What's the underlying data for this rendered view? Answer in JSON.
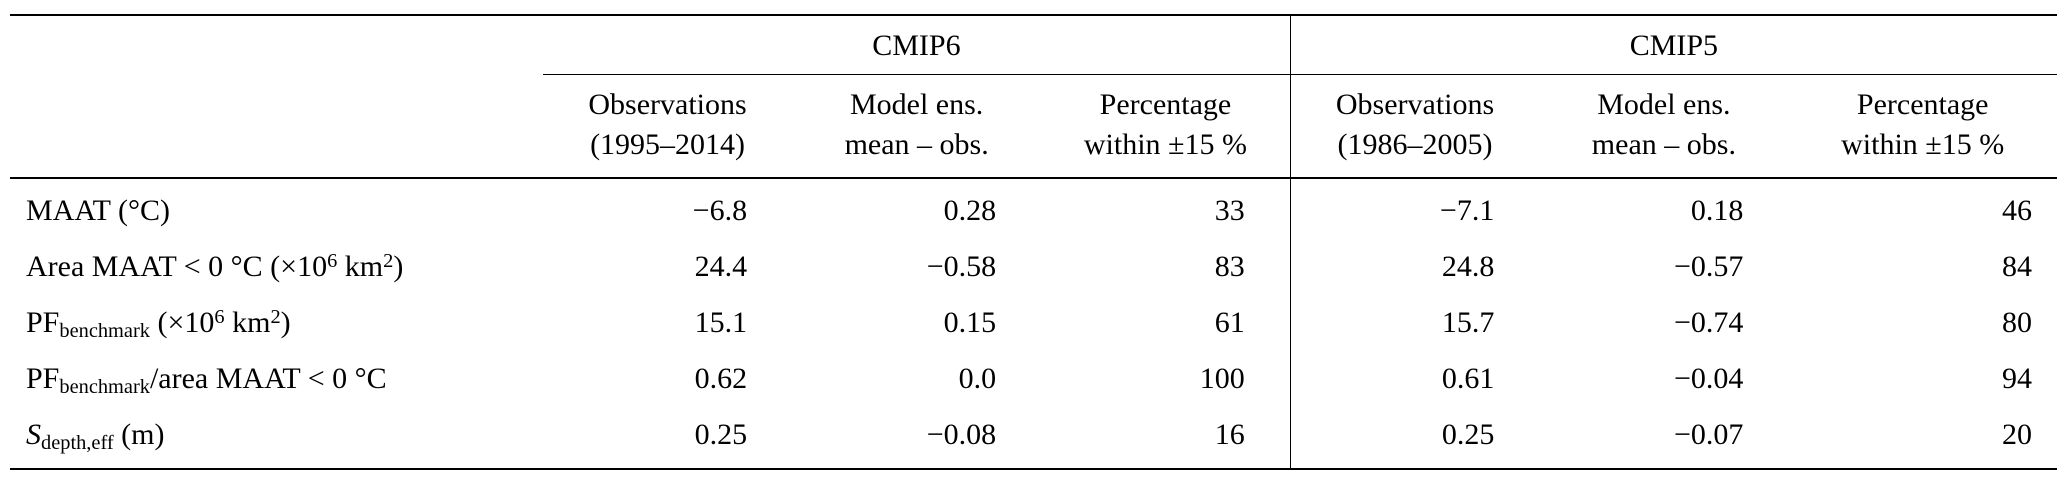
{
  "meta": {
    "background_color": "#ffffff",
    "text_color": "#000000"
  },
  "table": {
    "group_headers": [
      {
        "label": "CMIP6"
      },
      {
        "label": "CMIP5"
      }
    ],
    "column_headers": [
      {
        "line1": "Observations",
        "line2": "(1995–2014)"
      },
      {
        "line1": "Model ens.",
        "line2": "mean – obs."
      },
      {
        "line1": "Percentage",
        "line2": "within ±15 %"
      },
      {
        "line1": "Observations",
        "line2": "(1986–2005)"
      },
      {
        "line1": "Model ens.",
        "line2": "mean – obs."
      },
      {
        "line1": "Percentage",
        "line2": "within ±15 %"
      }
    ],
    "rows": [
      {
        "label": [
          {
            "text": "MAAT (°C)",
            "style": "normal"
          }
        ],
        "values": [
          "−6.8",
          "0.28",
          "33",
          "−7.1",
          "0.18",
          "46"
        ]
      },
      {
        "label": [
          {
            "text": "Area MAAT < 0 °C (×10",
            "style": "normal"
          },
          {
            "text": "6",
            "style": "sup"
          },
          {
            "text": " km",
            "style": "normal"
          },
          {
            "text": "2",
            "style": "sup"
          },
          {
            "text": ")",
            "style": "normal"
          }
        ],
        "values": [
          "24.4",
          "−0.58",
          "83",
          "24.8",
          "−0.57",
          "84"
        ]
      },
      {
        "label": [
          {
            "text": "PF",
            "style": "normal"
          },
          {
            "text": "benchmark",
            "style": "sub"
          },
          {
            "text": " (×10",
            "style": "normal"
          },
          {
            "text": "6",
            "style": "sup"
          },
          {
            "text": " km",
            "style": "normal"
          },
          {
            "text": "2",
            "style": "sup"
          },
          {
            "text": ")",
            "style": "normal"
          }
        ],
        "values": [
          "15.1",
          "0.15",
          "61",
          "15.7",
          "−0.74",
          "80"
        ]
      },
      {
        "label": [
          {
            "text": "PF",
            "style": "normal"
          },
          {
            "text": "benchmark",
            "style": "sub"
          },
          {
            "text": "/area MAAT < 0 °C",
            "style": "normal"
          }
        ],
        "values": [
          "0.62",
          "0.0",
          "100",
          "0.61",
          "−0.04",
          "94"
        ]
      },
      {
        "label": [
          {
            "text": "S",
            "style": "italic"
          },
          {
            "text": "depth,eff",
            "style": "sub"
          },
          {
            "text": " (m)",
            "style": "normal"
          }
        ],
        "values": [
          "0.25",
          "−0.08",
          "16",
          "0.25",
          "−0.07",
          "20"
        ]
      }
    ]
  }
}
